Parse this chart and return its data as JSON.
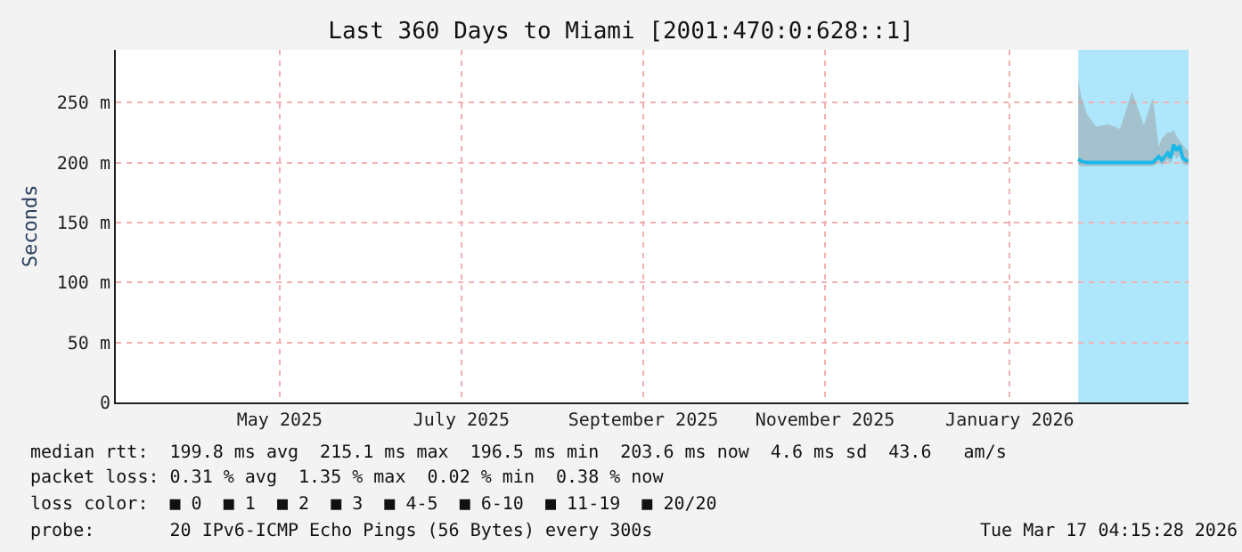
{
  "chart_data": {
    "type": "line",
    "title": "Last 360 Days to Miami [2001:470:0:628::1]",
    "ylabel": "Seconds",
    "x": [
      "2026-02-08",
      "2026-02-09",
      "2026-02-11",
      "2026-02-14",
      "2026-02-18",
      "2026-02-22",
      "2026-02-26",
      "2026-03-02",
      "2026-03-05",
      "2026-03-07",
      "2026-03-08",
      "2026-03-10",
      "2026-03-11",
      "2026-03-12",
      "2026-03-13",
      "2026-03-14",
      "2026-03-15",
      "2026-03-16",
      "2026-03-17"
    ],
    "series": [
      {
        "color": "#1ab8e8",
        "values": [
          203,
          201,
          200,
          200,
          200,
          200,
          200,
          200,
          200,
          205,
          202,
          208,
          204,
          215,
          210,
          214,
          204,
          202,
          201
        ],
        "lower": [
          198,
          197,
          197,
          197,
          197,
          197,
          197,
          197,
          197,
          200,
          198,
          202,
          199,
          207,
          203,
          206,
          199,
          198,
          198
        ],
        "upper": [
          269,
          255,
          240,
          230,
          232,
          228,
          259,
          231,
          254,
          213,
          220,
          225,
          225,
          227,
          222,
          218,
          215,
          212,
          210
        ]
      }
    ],
    "xlim": [
      "2025-03-22",
      "2026-03-17"
    ],
    "xticks": [
      {
        "value": "2025-05-16",
        "label": "May 2025"
      },
      {
        "value": "2025-07-16",
        "label": "July 2025"
      },
      {
        "value": "2025-09-15",
        "label": "September 2025"
      },
      {
        "value": "2025-11-15",
        "label": "November 2025"
      },
      {
        "value": "2026-01-16",
        "label": "January 2026"
      }
    ],
    "ylim": [
      0,
      294
    ],
    "yticks": [
      0,
      {
        "value": 50,
        "label": "50 m"
      },
      {
        "value": 100,
        "label": "100 m"
      },
      {
        "value": 150,
        "label": "150 m"
      },
      {
        "value": 200,
        "label": "200 m"
      },
      {
        "value": 250,
        "label": "250 m"
      }
    ],
    "bands": [
      {
        "axis": "x",
        "from": "2026-02-08",
        "to": "2026-03-17",
        "color": "#aee6fb"
      }
    ],
    "grid": true,
    "line_style": "solid",
    "marker": "none",
    "annotations": [
      "median rtt:  199.8 ms avg  215.1 ms max  196.5 ms min  203.6 ms now  4.6 ms sd  43.6   am/s",
      "packet loss: 0.31 % avg  1.35 % max  0.02 % min  0.38 % now",
      "loss color:  ■ 0  ■ 1  ■ 2  ■ 3  ■ 4-5  ■ 6-10  ■ 11-19  ■ 20/20",
      "probe:       20 IPv6-ICMP Echo Pings (56 Bytes) every 300s",
      "Tue Mar 17 04:15:28 2026"
    ]
  }
}
